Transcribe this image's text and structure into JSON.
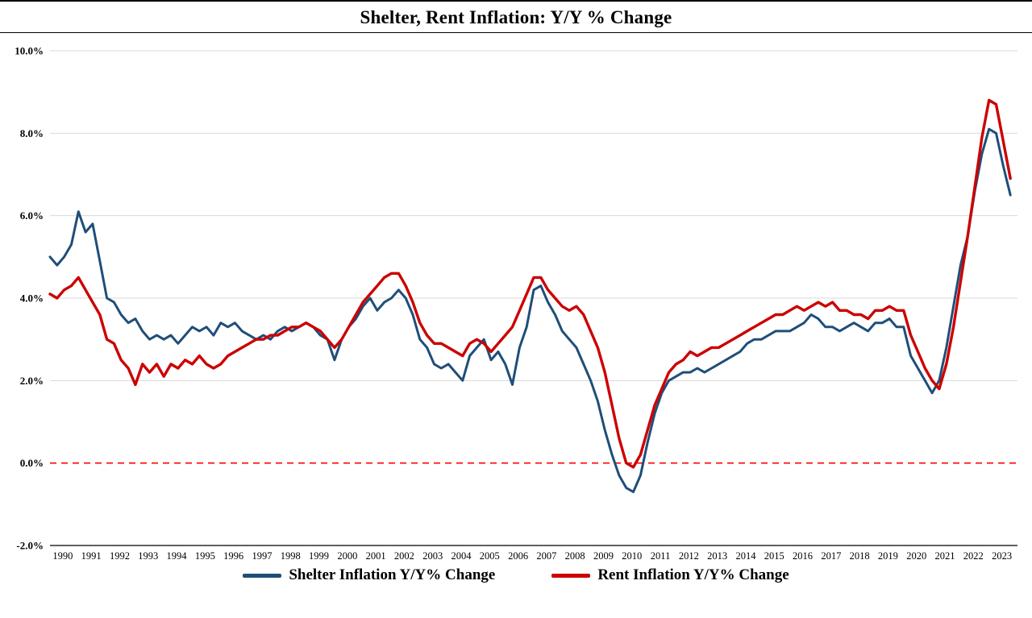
{
  "title": "Shelter, Rent Inflation: Y/Y % Change",
  "colors": {
    "shelter_line": "#1F4E79",
    "rent_line": "#CC0000",
    "zero_line": "#FF0000",
    "gridline": "#D9D9D9",
    "axis_line": "#000000"
  },
  "chart_data": {
    "type": "line",
    "title": "Shelter, Rent Inflation: Y/Y % Change",
    "xlabel": "",
    "ylabel": "",
    "ylim": [
      -2,
      10
    ],
    "xlim": [
      1990,
      2024
    ],
    "grid": "horizontal",
    "legend_position": "bottom-center",
    "y_ticks": [
      -2,
      0,
      2,
      4,
      6,
      8,
      10
    ],
    "y_tick_labels": [
      "-2.0%",
      "0.0%",
      "2.0%",
      "4.0%",
      "6.0%",
      "8.0%",
      "10.0%"
    ],
    "x_tick_labels": [
      "1990",
      "1991",
      "1992",
      "1993",
      "1994",
      "1995",
      "1996",
      "1997",
      "1998",
      "1999",
      "2000",
      "2001",
      "2002",
      "2003",
      "2004",
      "2005",
      "2006",
      "2007",
      "2008",
      "2009",
      "2010",
      "2011",
      "2012",
      "2013",
      "2014",
      "2015",
      "2016",
      "2017",
      "2018",
      "2019",
      "2020",
      "2021",
      "2022",
      "2023"
    ],
    "x_unit": "quarterly",
    "x_start": 1990,
    "x_step": 0.25,
    "zero_line": {
      "color": "#FF0000",
      "style": "dashed"
    },
    "series": [
      {
        "name": "Shelter Inflation Y/Y% Change",
        "color": "#1F4E79",
        "values": [
          5.0,
          4.8,
          5.0,
          5.3,
          6.1,
          5.6,
          5.8,
          4.9,
          4.0,
          3.9,
          3.6,
          3.4,
          3.5,
          3.2,
          3.0,
          3.1,
          3.0,
          3.1,
          2.9,
          3.1,
          3.3,
          3.2,
          3.3,
          3.1,
          3.4,
          3.3,
          3.4,
          3.2,
          3.1,
          3.0,
          3.1,
          3.0,
          3.2,
          3.3,
          3.2,
          3.3,
          3.4,
          3.3,
          3.1,
          3.0,
          2.5,
          3.0,
          3.3,
          3.5,
          3.8,
          4.0,
          3.7,
          3.9,
          4.0,
          4.2,
          4.0,
          3.6,
          3.0,
          2.8,
          2.4,
          2.3,
          2.4,
          2.2,
          2.0,
          2.6,
          2.8,
          3.0,
          2.5,
          2.7,
          2.4,
          1.9,
          2.8,
          3.3,
          4.2,
          4.3,
          3.9,
          3.6,
          3.2,
          3.0,
          2.8,
          2.4,
          2.0,
          1.5,
          0.8,
          0.2,
          -0.3,
          -0.6,
          -0.7,
          -0.3,
          0.5,
          1.2,
          1.7,
          2.0,
          2.1,
          2.2,
          2.2,
          2.3,
          2.2,
          2.3,
          2.4,
          2.5,
          2.6,
          2.7,
          2.9,
          3.0,
          3.0,
          3.1,
          3.2,
          3.2,
          3.2,
          3.3,
          3.4,
          3.6,
          3.5,
          3.3,
          3.3,
          3.2,
          3.3,
          3.4,
          3.3,
          3.2,
          3.4,
          3.4,
          3.5,
          3.3,
          3.3,
          2.6,
          2.3,
          2.0,
          1.7,
          2.0,
          2.8,
          3.8,
          4.8,
          5.5,
          6.6,
          7.5,
          8.1,
          8.0,
          7.2,
          6.5
        ]
      },
      {
        "name": "Rent Inflation Y/Y% Change",
        "color": "#CC0000",
        "values": [
          4.1,
          4.0,
          4.2,
          4.3,
          4.5,
          4.2,
          3.9,
          3.6,
          3.0,
          2.9,
          2.5,
          2.3,
          1.9,
          2.4,
          2.2,
          2.4,
          2.1,
          2.4,
          2.3,
          2.5,
          2.4,
          2.6,
          2.4,
          2.3,
          2.4,
          2.6,
          2.7,
          2.8,
          2.9,
          3.0,
          3.0,
          3.1,
          3.1,
          3.2,
          3.3,
          3.3,
          3.4,
          3.3,
          3.2,
          3.0,
          2.8,
          3.0,
          3.3,
          3.6,
          3.9,
          4.1,
          4.3,
          4.5,
          4.6,
          4.6,
          4.3,
          3.9,
          3.4,
          3.1,
          2.9,
          2.9,
          2.8,
          2.7,
          2.6,
          2.9,
          3.0,
          2.9,
          2.7,
          2.9,
          3.1,
          3.3,
          3.7,
          4.1,
          4.5,
          4.5,
          4.2,
          4.0,
          3.8,
          3.7,
          3.8,
          3.6,
          3.2,
          2.8,
          2.2,
          1.4,
          0.6,
          0.0,
          -0.1,
          0.2,
          0.8,
          1.4,
          1.8,
          2.2,
          2.4,
          2.5,
          2.7,
          2.6,
          2.7,
          2.8,
          2.8,
          2.9,
          3.0,
          3.1,
          3.2,
          3.3,
          3.4,
          3.5,
          3.6,
          3.6,
          3.7,
          3.8,
          3.7,
          3.8,
          3.9,
          3.8,
          3.9,
          3.7,
          3.7,
          3.6,
          3.6,
          3.5,
          3.7,
          3.7,
          3.8,
          3.7,
          3.7,
          3.1,
          2.7,
          2.3,
          2.0,
          1.8,
          2.4,
          3.3,
          4.4,
          5.5,
          6.7,
          7.9,
          8.8,
          8.7,
          7.8,
          6.9
        ]
      }
    ]
  }
}
